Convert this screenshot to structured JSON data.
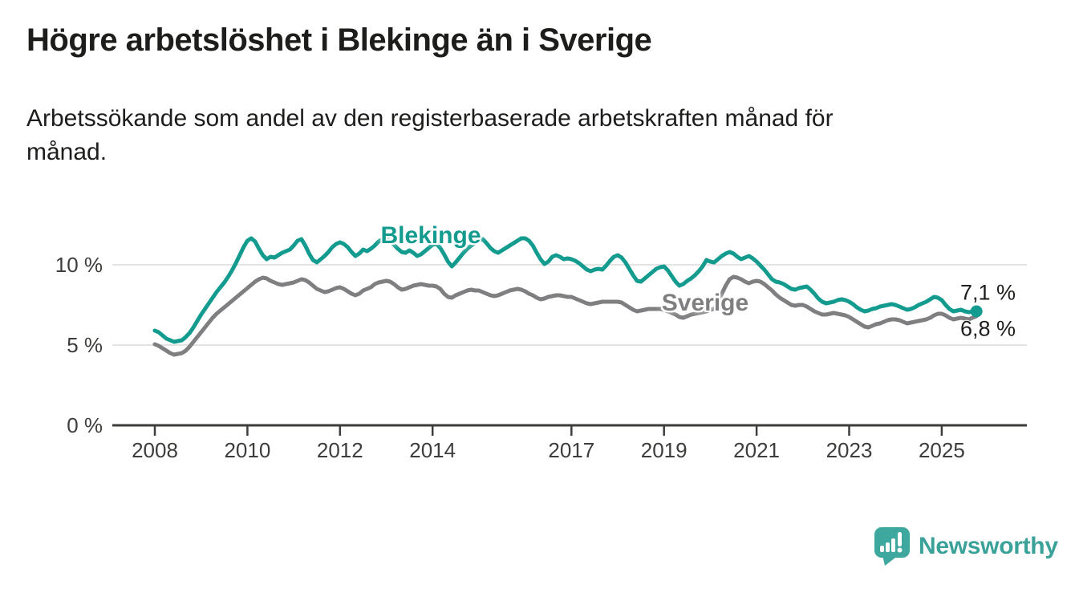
{
  "title": "Högre arbetslöshet i Blekinge än i Sverige",
  "subtitle": {
    "line1": "Arbetssökande som andel av den registerbaserade arbetskraften månad för",
    "line2": "månad."
  },
  "colors": {
    "blekinge_teal": "#129b8e",
    "sverige_gray": "#7f7f82",
    "grid_gray": "#dbdbdb",
    "axis_dark": "#3d3d3b",
    "text_dark": "#1d1d1b",
    "logo_teal": "#3ba29a"
  },
  "chart_data": {
    "type": "line",
    "unit": "%",
    "x_start": "2008-01",
    "x_end": "2025-10",
    "points_per_year": 12,
    "x_tick_years": [
      2008,
      2010,
      2012,
      2014,
      2017,
      2019,
      2021,
      2023,
      2025
    ],
    "y_ticks": [
      {
        "value": 0,
        "label": "0 %"
      },
      {
        "value": 5,
        "label": "5 %"
      },
      {
        "value": 10,
        "label": "10 %"
      }
    ],
    "ylim": [
      0,
      14
    ],
    "grid": true,
    "end_dot_series": "Blekinge",
    "series": [
      {
        "name": "Blekinge",
        "color": "#129b8e",
        "end_label": "7,1 %",
        "values": [
          5.9,
          5.8,
          5.6,
          5.4,
          5.3,
          5.2,
          5.25,
          5.3,
          5.5,
          5.75,
          6.1,
          6.5,
          6.9,
          7.25,
          7.6,
          7.95,
          8.3,
          8.6,
          8.9,
          9.25,
          9.65,
          10.1,
          10.6,
          11.1,
          11.5,
          11.65,
          11.45,
          11.0,
          10.6,
          10.35,
          10.5,
          10.45,
          10.6,
          10.75,
          10.85,
          10.95,
          11.2,
          11.5,
          11.6,
          11.2,
          10.7,
          10.3,
          10.15,
          10.35,
          10.55,
          10.8,
          11.1,
          11.3,
          11.4,
          11.3,
          11.1,
          10.8,
          10.55,
          10.7,
          10.95,
          10.85,
          11.0,
          11.2,
          11.45,
          11.6,
          11.65,
          11.5,
          11.25,
          11.0,
          10.8,
          10.75,
          10.9,
          10.75,
          10.55,
          10.65,
          10.85,
          11.05,
          11.25,
          11.3,
          11.05,
          10.65,
          10.2,
          9.9,
          10.15,
          10.45,
          10.75,
          11.0,
          11.2,
          11.35,
          11.5,
          11.6,
          11.35,
          11.05,
          10.85,
          10.75,
          10.9,
          11.05,
          11.2,
          11.35,
          11.5,
          11.65,
          11.65,
          11.5,
          11.2,
          10.75,
          10.35,
          10.05,
          10.2,
          10.5,
          10.6,
          10.5,
          10.35,
          10.4,
          10.35,
          10.25,
          10.1,
          9.9,
          9.7,
          9.6,
          9.7,
          9.75,
          9.7,
          9.95,
          10.25,
          10.5,
          10.6,
          10.45,
          10.15,
          9.75,
          9.35,
          9.0,
          8.95,
          9.15,
          9.35,
          9.55,
          9.75,
          9.85,
          9.9,
          9.65,
          9.3,
          8.95,
          8.7,
          8.8,
          9.0,
          9.15,
          9.35,
          9.6,
          9.9,
          10.3,
          10.2,
          10.15,
          10.35,
          10.55,
          10.7,
          10.8,
          10.7,
          10.5,
          10.35,
          10.45,
          10.55,
          10.4,
          10.2,
          9.95,
          9.7,
          9.4,
          9.1,
          8.95,
          8.9,
          8.8,
          8.65,
          8.5,
          8.45,
          8.55,
          8.6,
          8.65,
          8.45,
          8.2,
          7.9,
          7.7,
          7.6,
          7.65,
          7.7,
          7.8,
          7.85,
          7.8,
          7.7,
          7.55,
          7.35,
          7.2,
          7.1,
          7.15,
          7.25,
          7.3,
          7.4,
          7.45,
          7.5,
          7.55,
          7.5,
          7.4,
          7.3,
          7.2,
          7.25,
          7.35,
          7.5,
          7.6,
          7.7,
          7.85,
          8.0,
          7.95,
          7.8,
          7.5,
          7.25,
          7.1,
          7.15,
          7.2,
          7.1,
          7.05,
          7.08,
          7.1
        ]
      },
      {
        "name": "Sverige",
        "color": "#7f7f82",
        "end_label": "6,8 %",
        "values": [
          5.05,
          4.95,
          4.8,
          4.65,
          4.5,
          4.4,
          4.45,
          4.5,
          4.65,
          4.9,
          5.2,
          5.5,
          5.8,
          6.1,
          6.4,
          6.7,
          6.95,
          7.15,
          7.35,
          7.55,
          7.75,
          7.95,
          8.15,
          8.35,
          8.55,
          8.75,
          8.95,
          9.1,
          9.2,
          9.15,
          9.0,
          8.9,
          8.8,
          8.75,
          8.8,
          8.85,
          8.9,
          9.0,
          9.1,
          9.05,
          8.9,
          8.7,
          8.5,
          8.4,
          8.3,
          8.35,
          8.45,
          8.55,
          8.6,
          8.5,
          8.35,
          8.2,
          8.1,
          8.2,
          8.4,
          8.5,
          8.6,
          8.8,
          8.9,
          8.95,
          9.0,
          8.95,
          8.8,
          8.6,
          8.45,
          8.5,
          8.6,
          8.7,
          8.75,
          8.8,
          8.75,
          8.7,
          8.7,
          8.65,
          8.5,
          8.2,
          8.0,
          7.95,
          8.1,
          8.2,
          8.3,
          8.4,
          8.45,
          8.4,
          8.4,
          8.3,
          8.2,
          8.1,
          8.05,
          8.1,
          8.2,
          8.3,
          8.4,
          8.45,
          8.5,
          8.45,
          8.35,
          8.2,
          8.1,
          7.95,
          7.85,
          7.9,
          8.0,
          8.05,
          8.1,
          8.1,
          8.05,
          8.0,
          8.0,
          7.9,
          7.8,
          7.7,
          7.6,
          7.55,
          7.6,
          7.65,
          7.7,
          7.7,
          7.7,
          7.7,
          7.7,
          7.65,
          7.5,
          7.35,
          7.2,
          7.1,
          7.15,
          7.2,
          7.25,
          7.25,
          7.25,
          7.25,
          7.2,
          7.1,
          7.0,
          6.9,
          6.75,
          6.7,
          6.8,
          6.9,
          6.95,
          7.0,
          7.05,
          7.1,
          7.2,
          7.25,
          7.6,
          8.2,
          8.7,
          9.1,
          9.25,
          9.2,
          9.1,
          8.95,
          8.85,
          8.95,
          9.0,
          8.95,
          8.8,
          8.6,
          8.4,
          8.15,
          7.95,
          7.8,
          7.65,
          7.5,
          7.45,
          7.5,
          7.5,
          7.4,
          7.25,
          7.1,
          7.0,
          6.9,
          6.9,
          6.95,
          7.0,
          6.95,
          6.9,
          6.85,
          6.75,
          6.6,
          6.45,
          6.3,
          6.15,
          6.1,
          6.2,
          6.3,
          6.35,
          6.45,
          6.55,
          6.6,
          6.6,
          6.55,
          6.45,
          6.35,
          6.4,
          6.45,
          6.5,
          6.55,
          6.6,
          6.7,
          6.85,
          6.95,
          6.95,
          6.85,
          6.7,
          6.6,
          6.65,
          6.7,
          6.65,
          6.6,
          6.7,
          6.8
        ]
      }
    ]
  },
  "logo": {
    "wordmark": "Newsworthy",
    "icon": "bar-chart-speech-bubble-icon"
  }
}
